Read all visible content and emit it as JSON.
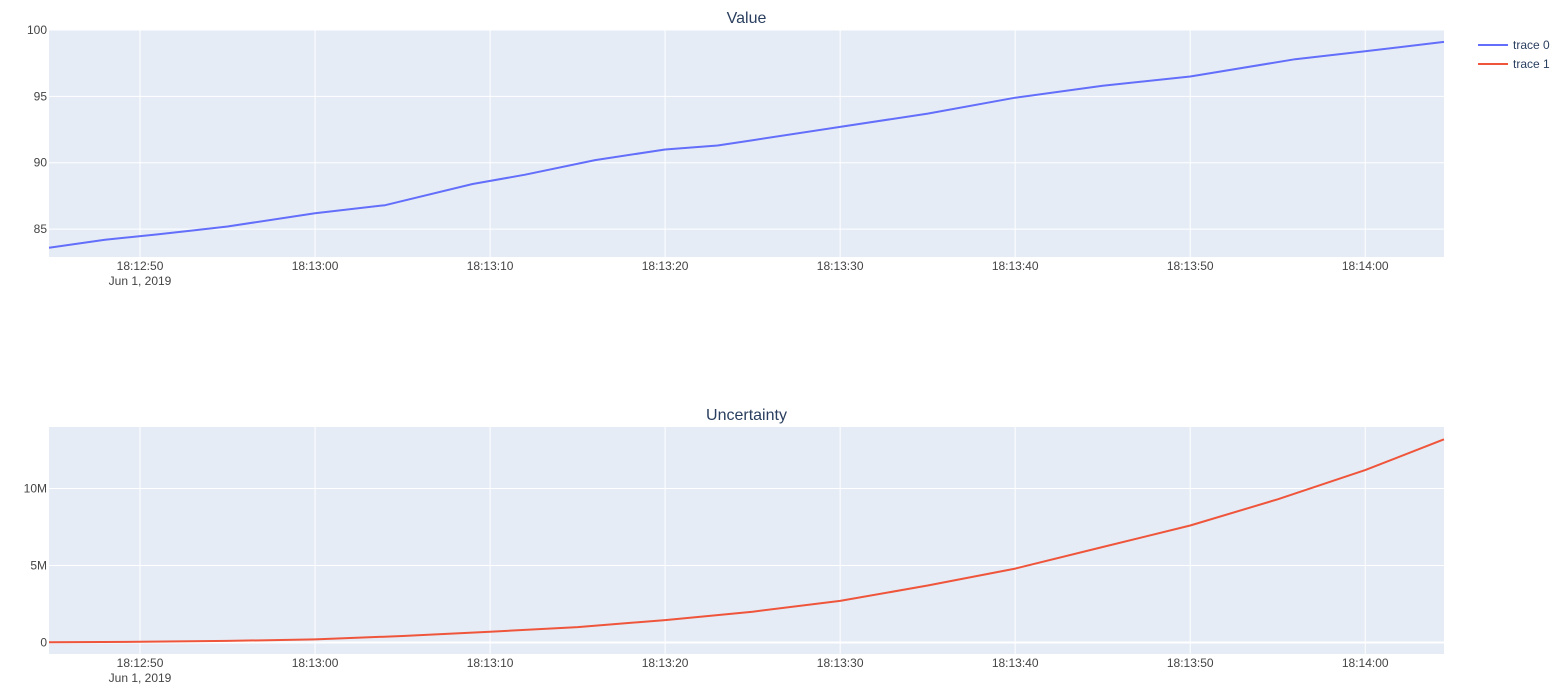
{
  "chart_data": {
    "type": "line",
    "date_label": "Jun 1, 2019",
    "colors": {
      "plot_bg": "#e5ecf6",
      "grid": "#ffffff",
      "text": "#2a3f5f",
      "tick": "#444444"
    },
    "legend": {
      "placement": "top-right",
      "items": [
        {
          "label": "trace 0",
          "color": "#636efa"
        },
        {
          "label": "trace 1",
          "color": "#ef553b"
        }
      ]
    },
    "x_ticks": [
      "18:12:50",
      "18:13:00",
      "18:13:10",
      "18:13:20",
      "18:13:30",
      "18:13:40",
      "18:13:50",
      "18:14:00"
    ],
    "subplots": [
      {
        "title": "Value",
        "series_index": 0,
        "color": "#636efa",
        "xlim": [
          "2019-06-01T18:12:44.8",
          "2019-06-01T18:14:04.5"
        ],
        "ylim": [
          82.9,
          100
        ],
        "y_ticks": [
          {
            "value": 85,
            "label": "85"
          },
          {
            "value": 90,
            "label": "90"
          },
          {
            "value": 95,
            "label": "95"
          },
          {
            "value": 100,
            "label": "100"
          }
        ],
        "x": [
          "2019-06-01T18:12:44.8",
          "2019-06-01T18:12:48",
          "2019-06-01T18:12:51",
          "2019-06-01T18:12:53",
          "2019-06-01T18:12:55",
          "2019-06-01T18:13:00",
          "2019-06-01T18:13:04",
          "2019-06-01T18:13:09",
          "2019-06-01T18:13:12",
          "2019-06-01T18:13:16",
          "2019-06-01T18:13:20",
          "2019-06-01T18:13:23",
          "2019-06-01T18:13:25",
          "2019-06-01T18:13:30",
          "2019-06-01T18:13:35",
          "2019-06-01T18:13:40",
          "2019-06-01T18:13:45",
          "2019-06-01T18:13:50",
          "2019-06-01T18:13:56",
          "2019-06-01T18:14:00",
          "2019-06-01T18:14:04.5"
        ],
        "y": [
          83.6,
          84.2,
          84.6,
          84.9,
          85.2,
          86.2,
          86.8,
          88.4,
          89.1,
          90.2,
          91.0,
          91.3,
          91.7,
          92.7,
          93.7,
          94.9,
          95.8,
          96.5,
          97.8,
          98.4,
          99.1
        ]
      },
      {
        "title": "Uncertainty",
        "series_index": 1,
        "color": "#ef553b",
        "xlim": [
          "2019-06-01T18:12:44.8",
          "2019-06-01T18:14:04.5"
        ],
        "ylim": [
          -750000,
          14000000
        ],
        "y_ticks": [
          {
            "value": 0,
            "label": "0"
          },
          {
            "value": 5000000,
            "label": "5M"
          },
          {
            "value": 10000000,
            "label": "10M"
          }
        ],
        "x": [
          "2019-06-01T18:12:44.8",
          "2019-06-01T18:12:50",
          "2019-06-01T18:12:55",
          "2019-06-01T18:13:00",
          "2019-06-01T18:13:05",
          "2019-06-01T18:13:10",
          "2019-06-01T18:13:15",
          "2019-06-01T18:13:20",
          "2019-06-01T18:13:25",
          "2019-06-01T18:13:30",
          "2019-06-01T18:13:35",
          "2019-06-01T18:13:40",
          "2019-06-01T18:13:45",
          "2019-06-01T18:13:50",
          "2019-06-01T18:13:55",
          "2019-06-01T18:14:00",
          "2019-06-01T18:14:04.5"
        ],
        "y": [
          10000,
          40000,
          100000,
          200000,
          420000,
          700000,
          1000000,
          1450000,
          2000000,
          2700000,
          3700000,
          4800000,
          6200000,
          7600000,
          9300000,
          11200000,
          13200000
        ]
      }
    ]
  }
}
